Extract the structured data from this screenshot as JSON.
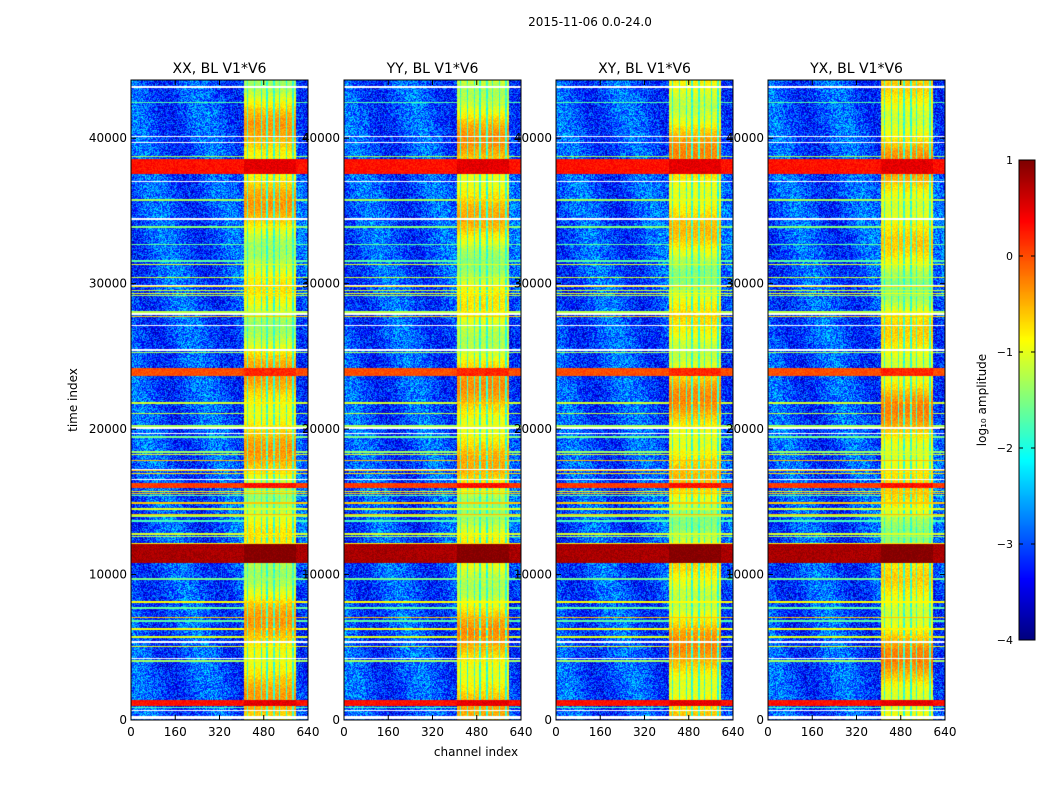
{
  "suptitle": "2015-11-06 0.0-24.0",
  "xlabel": "channel index",
  "ylabel": "time index",
  "colorbar": {
    "label": "log₁₀ amplitude",
    "range": [
      -4,
      1
    ],
    "ticks": [
      "1",
      "0",
      "−1",
      "−2",
      "−3",
      "−4"
    ]
  },
  "chart_data": {
    "type": "heatmap",
    "colormap": "jet",
    "xlim": [
      0,
      640
    ],
    "ylim": [
      0,
      44000
    ],
    "xticks": [
      0,
      160,
      320,
      480,
      640
    ],
    "yticks": [
      0,
      10000,
      20000,
      30000,
      40000
    ],
    "ytick_labels": [
      "0",
      "10000",
      "20000",
      "30000",
      "40000"
    ],
    "value_label": "log10 amplitude",
    "panels": [
      {
        "title": "XX, BL V1*V6"
      },
      {
        "title": "YY, BL V1*V6"
      },
      {
        "title": "XY, BL V1*V6"
      },
      {
        "title": "YX, BL V1*V6"
      }
    ],
    "features": {
      "bright_channel_band": [
        405,
        595
      ],
      "bright_channel_stripes": [
        420,
        445,
        470,
        490,
        515,
        535,
        560,
        585
      ],
      "strong_time_bands": [
        {
          "start": 1000,
          "end": 1400,
          "level": 0.3
        },
        {
          "start": 10800,
          "end": 12100,
          "level": 0.8
        },
        {
          "start": 16000,
          "end": 16300,
          "level": 0.1
        },
        {
          "start": 23700,
          "end": 24200,
          "level": 0.0
        },
        {
          "start": 37600,
          "end": 38600,
          "level": 0.3
        }
      ],
      "background_level": -3.0
    }
  }
}
